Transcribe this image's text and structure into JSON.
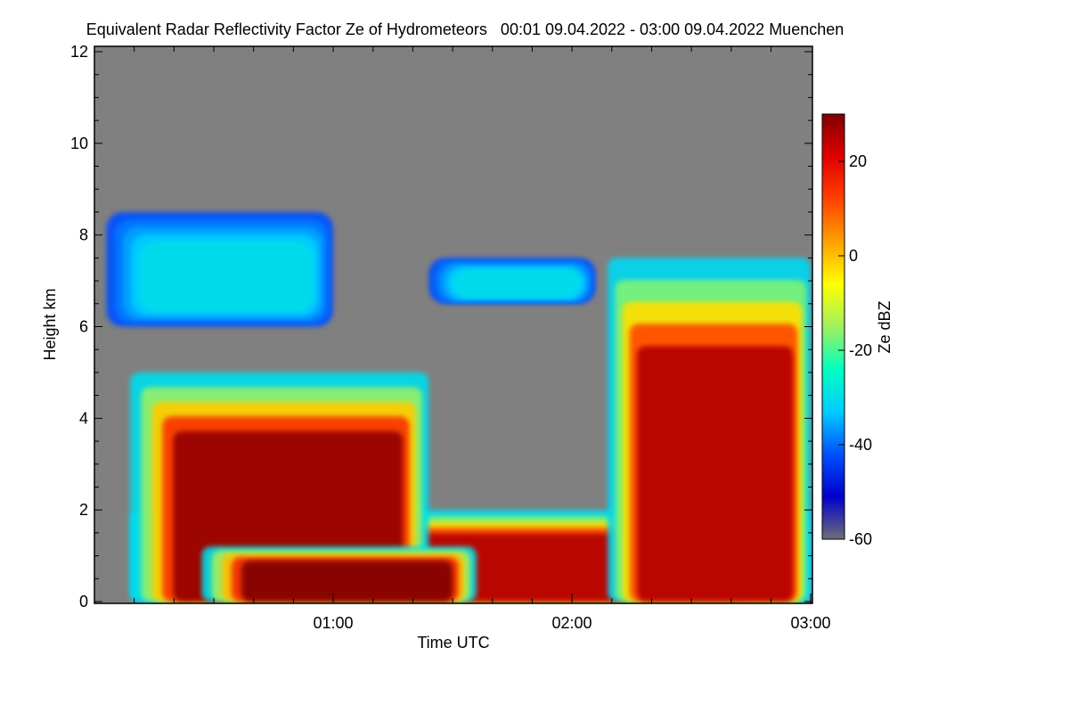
{
  "chart_data": {
    "type": "heatmap",
    "title": "Equivalent Radar Reflectivity Factor Ze of Hydrometeors   00:01 09.04.2022 - 03:00 09.04.2022 Muenchen",
    "xlabel": "Time UTC",
    "ylabel": "Height km",
    "x_range_hours": [
      0.0,
      3.0
    ],
    "x_major_ticks": [
      {
        "value": 1,
        "label": "01:00"
      },
      {
        "value": 2,
        "label": "02:00"
      },
      {
        "value": 3,
        "label": "03:00"
      }
    ],
    "x_minor_tick_step_hours": 0.1667,
    "ylim": [
      0,
      12
    ],
    "y_ticks": [
      0,
      2,
      4,
      6,
      8,
      10,
      12
    ],
    "y_minor_tick_step": 0.5,
    "colorbar": {
      "label": "Ze dBZ",
      "range": [
        -60,
        30
      ],
      "ticks": [
        20,
        0,
        -20,
        -40,
        -60
      ],
      "colors": [
        "#6e6e78",
        "#0000cc",
        "#0050ff",
        "#00ccff",
        "#00ffc0",
        "#a0f060",
        "#ffff00",
        "#ffa000",
        "#ff4000",
        "#e00000",
        "#800000"
      ]
    },
    "background_color": "#808080",
    "features": [
      {
        "name": "low precipitation layer",
        "time_start": 0.15,
        "time_end": 3.0,
        "height_top_km": 2.0,
        "ze_peak_dbz": 25
      },
      {
        "name": "deep convective cell",
        "time_start": 0.15,
        "time_end": 1.4,
        "height_top_km": 5.0,
        "ze_peak_dbz": 28
      },
      {
        "name": "upper ice cloud",
        "time_start": 0.05,
        "time_end": 1.0,
        "height_base_km": 6.0,
        "height_top_km": 8.5,
        "ze_peak_dbz": -30
      },
      {
        "name": "mid cirrus band",
        "time_start": 1.4,
        "time_end": 2.1,
        "height_base_km": 6.5,
        "height_top_km": 7.5,
        "ze_peak_dbz": -30
      },
      {
        "name": "late convective cell",
        "time_start": 2.15,
        "time_end": 3.0,
        "height_top_km": 7.5,
        "ze_peak_dbz": 25
      },
      {
        "name": "strong low-level echo",
        "time_start": 0.45,
        "time_end": 1.6,
        "height_top_km": 1.2,
        "ze_peak_dbz": 30
      }
    ]
  }
}
